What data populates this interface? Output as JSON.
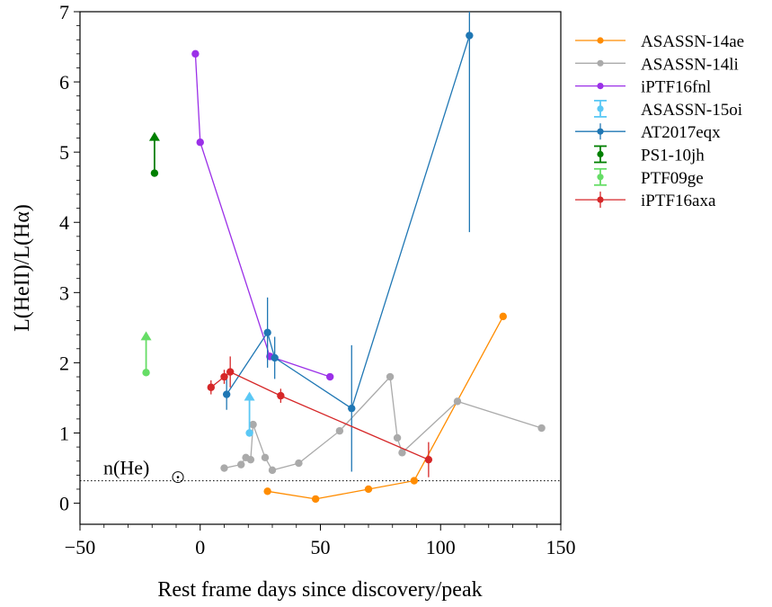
{
  "chart_data": {
    "type": "scatter",
    "xlabel": "Rest frame days since discovery/peak",
    "ylabel": "L(HeII)/L(Hα)",
    "xlim": [
      -50,
      150
    ],
    "ylim": [
      -0.3,
      7
    ],
    "xticks": [
      -50,
      0,
      50,
      100,
      150
    ],
    "xtick_labels": [
      "−50",
      "0",
      "50",
      "100",
      "150"
    ],
    "yticks": [
      0,
      1,
      2,
      3,
      4,
      5,
      6,
      7
    ],
    "ytick_labels": [
      "0",
      "1",
      "2",
      "3",
      "4",
      "5",
      "6",
      "7"
    ],
    "legend_position": "right, outside plot",
    "grid": false,
    "annotations": [
      {
        "type": "hline",
        "y": 0.32,
        "style": "dotted",
        "label": "n(He)",
        "symbol": "sun"
      }
    ],
    "series": [
      {
        "name": "ASASSN-14ae",
        "color": "#ff8c00",
        "line": true,
        "points": [
          {
            "x": 28,
            "y": 0.17
          },
          {
            "x": 48,
            "y": 0.06
          },
          {
            "x": 70,
            "y": 0.2
          },
          {
            "x": 89,
            "y": 0.32
          },
          {
            "x": 126,
            "y": 2.66
          }
        ]
      },
      {
        "name": "ASASSN-14li",
        "color": "#aaaaaa",
        "line": true,
        "points": [
          {
            "x": 10,
            "y": 0.5
          },
          {
            "x": 17,
            "y": 0.55
          },
          {
            "x": 19,
            "y": 0.65
          },
          {
            "x": 21,
            "y": 0.62
          },
          {
            "x": 22,
            "y": 1.12
          },
          {
            "x": 27,
            "y": 0.65
          },
          {
            "x": 30,
            "y": 0.47
          },
          {
            "x": 41,
            "y": 0.57
          },
          {
            "x": 58,
            "y": 1.03
          },
          {
            "x": 79,
            "y": 1.8
          },
          {
            "x": 82,
            "y": 0.93
          },
          {
            "x": 84,
            "y": 0.72
          },
          {
            "x": 107,
            "y": 1.45
          },
          {
            "x": 142,
            "y": 1.07
          }
        ]
      },
      {
        "name": "iPTF16fnl",
        "color": "#9b30e8",
        "line": true,
        "points": [
          {
            "x": -2,
            "y": 6.4
          },
          {
            "x": 0,
            "y": 5.14
          },
          {
            "x": 29,
            "y": 2.09
          },
          {
            "x": 54,
            "y": 1.8
          }
        ]
      },
      {
        "name": "ASASSN-15oi",
        "color": "#5bc8f5",
        "line": false,
        "points": [
          {
            "x": 20.5,
            "y": 1.0
          }
        ],
        "lower_limit": true
      },
      {
        "name": "AT2017eqx",
        "color": "#1f77b4",
        "line": true,
        "points": [
          {
            "x": 11,
            "y": 1.55,
            "yerr": 0.22
          },
          {
            "x": 28,
            "y": 2.43,
            "yerr": 0.5
          },
          {
            "x": 31,
            "y": 2.07,
            "yerr": 0.3
          },
          {
            "x": 63,
            "y": 1.35,
            "yerr": 0.9
          },
          {
            "x": 112,
            "y": 6.66,
            "yerr": 2.8
          }
        ]
      },
      {
        "name": "PS1-10jh",
        "color": "#008000",
        "line": false,
        "points": [
          {
            "x": -19,
            "y": 4.7
          }
        ],
        "lower_limit": true
      },
      {
        "name": "PTF09ge",
        "color": "#66dd66",
        "line": false,
        "points": [
          {
            "x": -22.5,
            "y": 1.86
          }
        ],
        "lower_limit": true
      },
      {
        "name": "iPTF16axa",
        "color": "#d62728",
        "line": true,
        "points": [
          {
            "x": 4.5,
            "y": 1.65,
            "yerr": 0.1
          },
          {
            "x": 10,
            "y": 1.8,
            "yerr": 0.1
          },
          {
            "x": 12.5,
            "y": 1.87,
            "yerr": 0.22
          },
          {
            "x": 33.5,
            "y": 1.53,
            "yerr": 0.1
          },
          {
            "x": 95,
            "y": 0.62,
            "yerr": 0.25
          }
        ]
      }
    ]
  }
}
